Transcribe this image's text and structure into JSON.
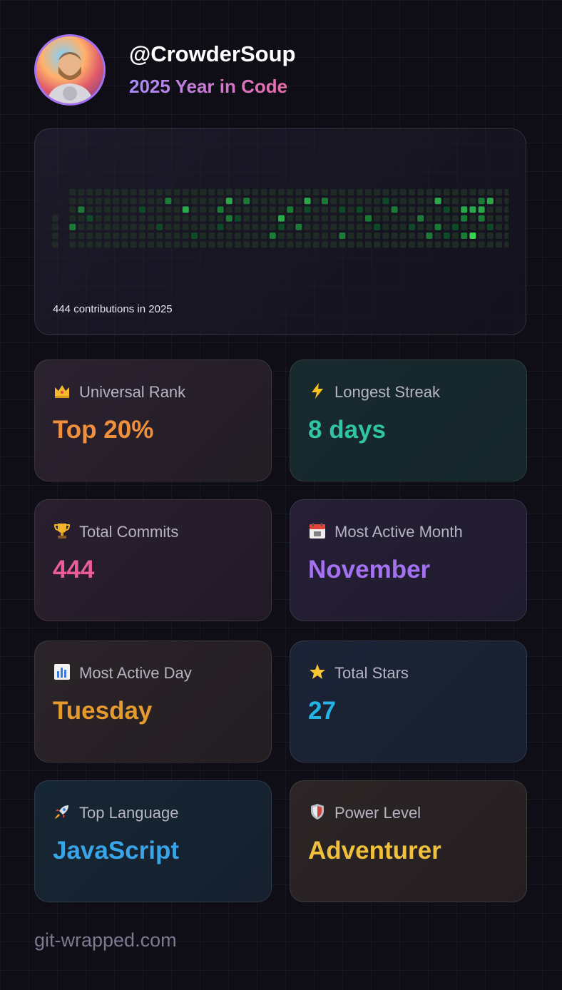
{
  "profile": {
    "username": "@CrowderSoup",
    "subtitle": "2025 Year in Code"
  },
  "contributions": {
    "summary": "444 contributions in 2025",
    "level_colors": [
      "#1f2b25",
      "#0f4a26",
      "#1a7a36",
      "#2aa84a",
      "#39d353"
    ]
  },
  "stats": [
    {
      "icon": "crown-icon",
      "label": "Universal Rank",
      "value": "Top 20%",
      "color": "#f0903c"
    },
    {
      "icon": "lightning-icon",
      "label": "Longest Streak",
      "value": "8 days",
      "color": "#2fc4a4"
    },
    {
      "icon": "trophy-icon",
      "label": "Total Commits",
      "value": "444",
      "color": "#ec5c9c"
    },
    {
      "icon": "calendar-icon",
      "label": "Most Active Month",
      "value": "November",
      "color": "#a472f0"
    },
    {
      "icon": "bar-chart-icon",
      "label": "Most Active Day",
      "value": "Tuesday",
      "color": "#e69a2e"
    },
    {
      "icon": "star-icon",
      "label": "Total Stars",
      "value": "27",
      "color": "#22b4e6"
    },
    {
      "icon": "rocket-icon",
      "label": "Top Language",
      "value": "JavaScript",
      "color": "#3aa4e8"
    },
    {
      "icon": "shield-icon",
      "label": "Power Level",
      "value": "Adventurer",
      "color": "#f0bf3c"
    }
  ],
  "footer": {
    "site": "git-wrapped.com"
  }
}
